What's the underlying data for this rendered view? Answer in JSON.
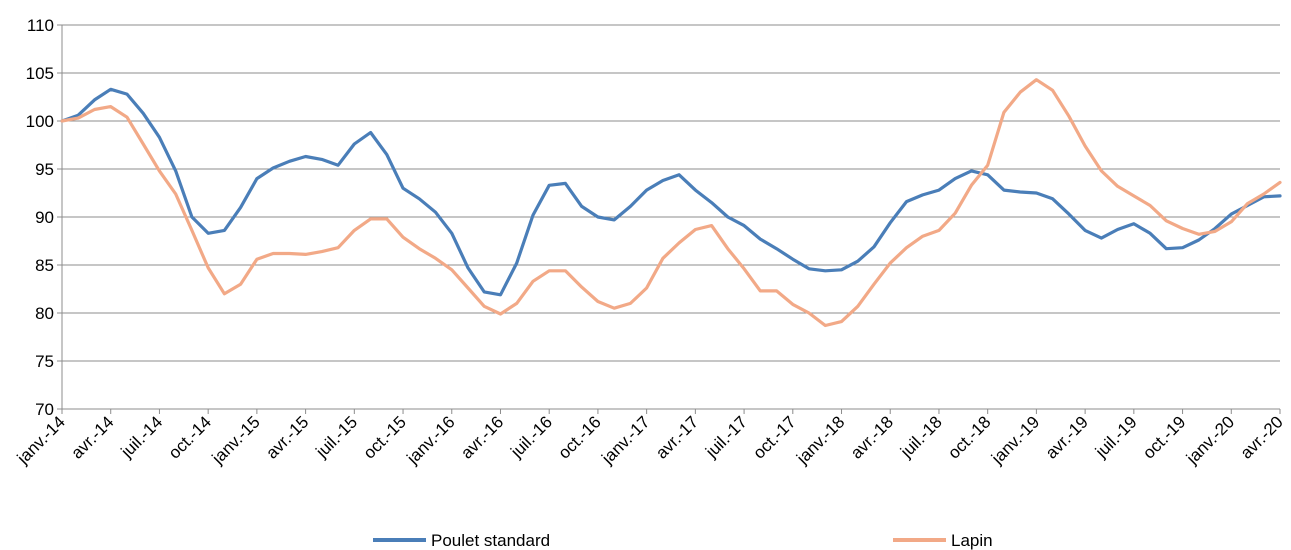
{
  "chart_data": {
    "type": "line",
    "title": "",
    "xlabel": "",
    "ylabel": "",
    "ylim": [
      70,
      110
    ],
    "yticks": [
      70,
      75,
      80,
      85,
      90,
      95,
      100,
      105,
      110
    ],
    "grid": "horizontal",
    "legend_position": "bottom",
    "x_tick_labels": [
      "janv.-14",
      "avr.-14",
      "juil.-14",
      "oct.-14",
      "janv.-15",
      "avr.-15",
      "juil.-15",
      "oct.-15",
      "janv.-16",
      "avr.-16",
      "juil.-16",
      "oct.-16",
      "janv.-17",
      "avr.-17",
      "juil.-17",
      "oct.-17",
      "janv.-18",
      "avr.-18",
      "juil.-18",
      "oct.-18",
      "janv.-19",
      "avr.-19",
      "juil.-19",
      "oct.-19",
      "janv.-20",
      "avr.-20"
    ],
    "series": [
      {
        "name": "Poulet standard",
        "color": "#4a7eb8",
        "values": [
          100.0,
          100.6,
          102.2,
          103.3,
          102.8,
          100.8,
          98.3,
          94.8,
          90.0,
          88.3,
          88.6,
          91.0,
          94.0,
          95.1,
          95.8,
          96.3,
          96.0,
          95.4,
          97.6,
          98.8,
          96.5,
          93.0,
          91.9,
          90.5,
          88.3,
          84.7,
          82.2,
          81.9,
          85.2,
          90.2,
          93.3,
          93.5,
          91.1,
          90.0,
          89.7,
          91.1,
          92.8,
          93.8,
          94.4,
          92.8,
          91.5,
          90.0,
          89.1,
          87.7,
          86.7,
          85.6,
          84.6,
          84.4,
          84.5,
          85.4,
          86.9,
          89.4,
          91.6,
          92.3,
          92.8,
          94.0,
          94.8,
          94.4,
          92.8,
          92.6,
          92.5,
          91.9,
          90.3,
          88.6,
          87.8,
          88.7,
          89.3,
          88.3,
          86.7,
          86.8,
          87.6,
          88.8,
          90.3,
          91.2,
          92.1,
          92.2
        ]
      },
      {
        "name": "Lapin",
        "color": "#f2a987",
        "values": [
          100.0,
          100.3,
          101.2,
          101.5,
          100.4,
          97.6,
          94.8,
          92.4,
          88.6,
          84.7,
          82.0,
          83.0,
          85.6,
          86.2,
          86.2,
          86.1,
          86.4,
          86.8,
          88.6,
          89.8,
          89.8,
          87.9,
          86.7,
          85.7,
          84.5,
          82.6,
          80.7,
          79.9,
          81.0,
          83.3,
          84.4,
          84.4,
          82.7,
          81.2,
          80.5,
          81.0,
          82.6,
          85.7,
          87.3,
          88.7,
          89.1,
          86.7,
          84.6,
          82.3,
          82.3,
          80.9,
          80.0,
          78.7,
          79.1,
          80.7,
          83.0,
          85.2,
          86.8,
          88.0,
          88.6,
          90.4,
          93.3,
          95.4,
          100.9,
          103.0,
          104.3,
          103.2,
          100.5,
          97.4,
          94.8,
          93.2,
          92.2,
          91.2,
          89.6,
          88.8,
          88.2,
          88.5,
          89.5,
          91.4,
          92.4,
          93.6
        ]
      }
    ]
  }
}
